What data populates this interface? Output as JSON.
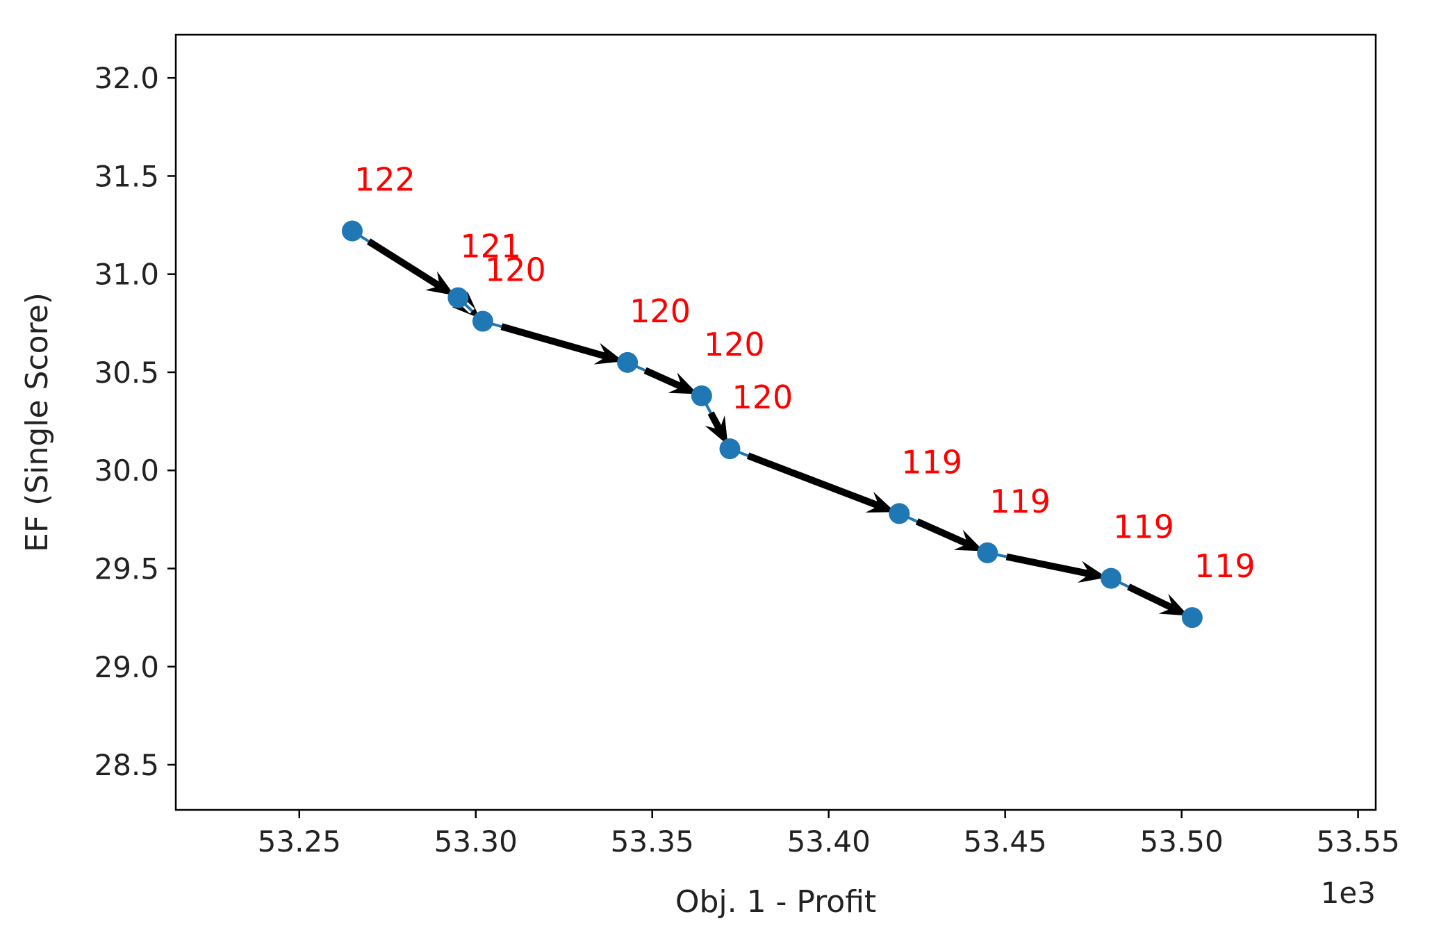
{
  "chart_data": {
    "type": "line",
    "xlabel": "Obj. 1 - Profit",
    "ylabel": "EF (Single Score)",
    "x_offset_label": "1e3",
    "xlim": [
      53.215,
      53.555
    ],
    "ylim": [
      28.27,
      32.22
    ],
    "x_ticks": [
      53.25,
      53.3,
      53.35,
      53.4,
      53.45,
      53.5,
      53.55
    ],
    "x_tick_labels": [
      "53.25",
      "53.30",
      "53.35",
      "53.40",
      "53.45",
      "53.50",
      "53.55"
    ],
    "y_ticks": [
      28.5,
      29.0,
      29.5,
      30.0,
      30.5,
      31.0,
      31.5,
      32.0
    ],
    "y_tick_labels": [
      "28.5",
      "29.0",
      "29.5",
      "30.0",
      "30.5",
      "31.0",
      "31.5",
      "32.0"
    ],
    "grid": false,
    "series": [
      {
        "points": [
          {
            "x": 53.265,
            "y": 31.22,
            "label": "122"
          },
          {
            "x": 53.295,
            "y": 30.88,
            "label": "121"
          },
          {
            "x": 53.302,
            "y": 30.76,
            "label": "120"
          },
          {
            "x": 53.343,
            "y": 30.55,
            "label": "120"
          },
          {
            "x": 53.364,
            "y": 30.38,
            "label": "120"
          },
          {
            "x": 53.372,
            "y": 30.11,
            "label": "120"
          },
          {
            "x": 53.42,
            "y": 29.78,
            "label": "119"
          },
          {
            "x": 53.445,
            "y": 29.58,
            "label": "119"
          },
          {
            "x": 53.48,
            "y": 29.45,
            "label": "119"
          },
          {
            "x": 53.503,
            "y": 29.25,
            "label": "119"
          }
        ]
      }
    ],
    "colors": {
      "line": "#1f77b4",
      "marker": "#1f77b4",
      "arrow": "#000000",
      "annotation": "#ff0000",
      "axes": "#000000",
      "text": "#222222"
    }
  }
}
